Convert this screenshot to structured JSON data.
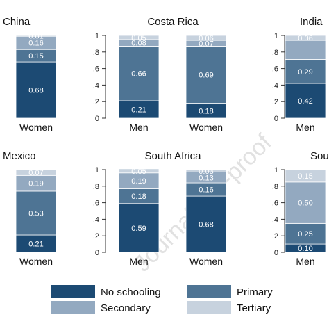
{
  "colors": {
    "no_schooling": "#1c4a73",
    "primary": "#4e7494",
    "secondary": "#93a9c0",
    "tertiary": "#c7d2de",
    "axis": "#333333",
    "watermark": "#c9c9c9"
  },
  "watermark": "Journal Pre-proof",
  "legend": {
    "items": [
      {
        "key": "no_schooling",
        "label": "No schooling"
      },
      {
        "key": "primary",
        "label": "Primary"
      },
      {
        "key": "secondary",
        "label": "Secondary"
      },
      {
        "key": "tertiary",
        "label": "Tertiary"
      }
    ]
  },
  "chart_data": [
    {
      "type": "bar",
      "stacked": true,
      "title": "China",
      "ylim": [
        0,
        1
      ],
      "yticks": [
        "0",
        ".2",
        ".4",
        ".6",
        ".8",
        "1"
      ],
      "categories": [
        "Women"
      ],
      "series": [
        {
          "name": "No schooling",
          "values": [
            0.68
          ]
        },
        {
          "name": "Primary",
          "values": [
            0.15
          ]
        },
        {
          "name": "Secondary",
          "values": [
            0.16
          ]
        },
        {
          "name": "Tertiary",
          "values": [
            0.01
          ]
        }
      ],
      "labels": [
        [
          "0.68",
          "0.15",
          "0.16",
          "0.01"
        ]
      ]
    },
    {
      "type": "bar",
      "stacked": true,
      "title": "Costa Rica",
      "ylim": [
        0,
        1
      ],
      "yticks": [
        "0",
        ".2",
        ".4",
        ".6",
        ".8",
        "1"
      ],
      "categories": [
        "Men",
        "Women"
      ],
      "series": [
        {
          "name": "No schooling",
          "values": [
            0.21,
            0.18
          ]
        },
        {
          "name": "Primary",
          "values": [
            0.66,
            0.69
          ]
        },
        {
          "name": "Secondary",
          "values": [
            0.08,
            0.07
          ]
        },
        {
          "name": "Tertiary",
          "values": [
            0.05,
            0.06
          ]
        }
      ],
      "labels": [
        [
          "0.21",
          "0.66",
          "0.08",
          "0.05"
        ],
        [
          "0.18",
          "0.69",
          "0.07",
          "0.06"
        ]
      ]
    },
    {
      "type": "bar",
      "stacked": true,
      "title": "India",
      "ylim": [
        0,
        1
      ],
      "yticks": [
        "0",
        ".2",
        ".4",
        ".6",
        ".8",
        "1"
      ],
      "categories": [
        "Men"
      ],
      "series": [
        {
          "name": "No schooling",
          "values": [
            0.42
          ]
        },
        {
          "name": "Primary",
          "values": [
            0.29
          ]
        },
        {
          "name": "Secondary",
          "values": [
            0.23
          ]
        },
        {
          "name": "Tertiary",
          "values": [
            0.06
          ]
        }
      ],
      "labels": [
        [
          "0.42",
          "0.29",
          "",
          "0.06"
        ]
      ]
    },
    {
      "type": "bar",
      "stacked": true,
      "title": "Mexico",
      "ylim": [
        0,
        1
      ],
      "yticks": [
        "0",
        ".2",
        ".4",
        ".6",
        ".8",
        "1"
      ],
      "categories": [
        "Women"
      ],
      "series": [
        {
          "name": "No schooling",
          "values": [
            0.21
          ]
        },
        {
          "name": "Primary",
          "values": [
            0.53
          ]
        },
        {
          "name": "Secondary",
          "values": [
            0.19
          ]
        },
        {
          "name": "Tertiary",
          "values": [
            0.07
          ]
        }
      ],
      "labels": [
        [
          "0.21",
          "0.53",
          "0.19",
          "0.07"
        ]
      ]
    },
    {
      "type": "bar",
      "stacked": true,
      "title": "South Africa",
      "ylim": [
        0,
        1
      ],
      "yticks": [
        "0",
        ".2",
        ".4",
        ".6",
        ".8",
        "1"
      ],
      "categories": [
        "Men",
        "Women"
      ],
      "series": [
        {
          "name": "No schooling",
          "values": [
            0.59,
            0.68
          ]
        },
        {
          "name": "Primary",
          "values": [
            0.18,
            0.16
          ]
        },
        {
          "name": "Secondary",
          "values": [
            0.19,
            0.13
          ]
        },
        {
          "name": "Tertiary",
          "values": [
            0.05,
            0.03
          ]
        }
      ],
      "labels": [
        [
          "0.59",
          "0.18",
          "0.19",
          "0.05"
        ],
        [
          "0.68",
          "0.16",
          "0.13",
          "0.03"
        ]
      ]
    },
    {
      "type": "bar",
      "stacked": true,
      "title": "South Korea",
      "ylim": [
        0,
        1
      ],
      "yticks": [
        "0",
        ".2",
        ".4",
        ".6",
        ".8",
        "1"
      ],
      "categories": [
        "Men"
      ],
      "series": [
        {
          "name": "No schooling",
          "values": [
            0.1
          ]
        },
        {
          "name": "Primary",
          "values": [
            0.25
          ]
        },
        {
          "name": "Secondary",
          "values": [
            0.5
          ]
        },
        {
          "name": "Tertiary",
          "values": [
            0.15
          ]
        }
      ],
      "labels": [
        [
          "0.10",
          "0.25",
          "0.50",
          "0.15"
        ]
      ]
    }
  ]
}
